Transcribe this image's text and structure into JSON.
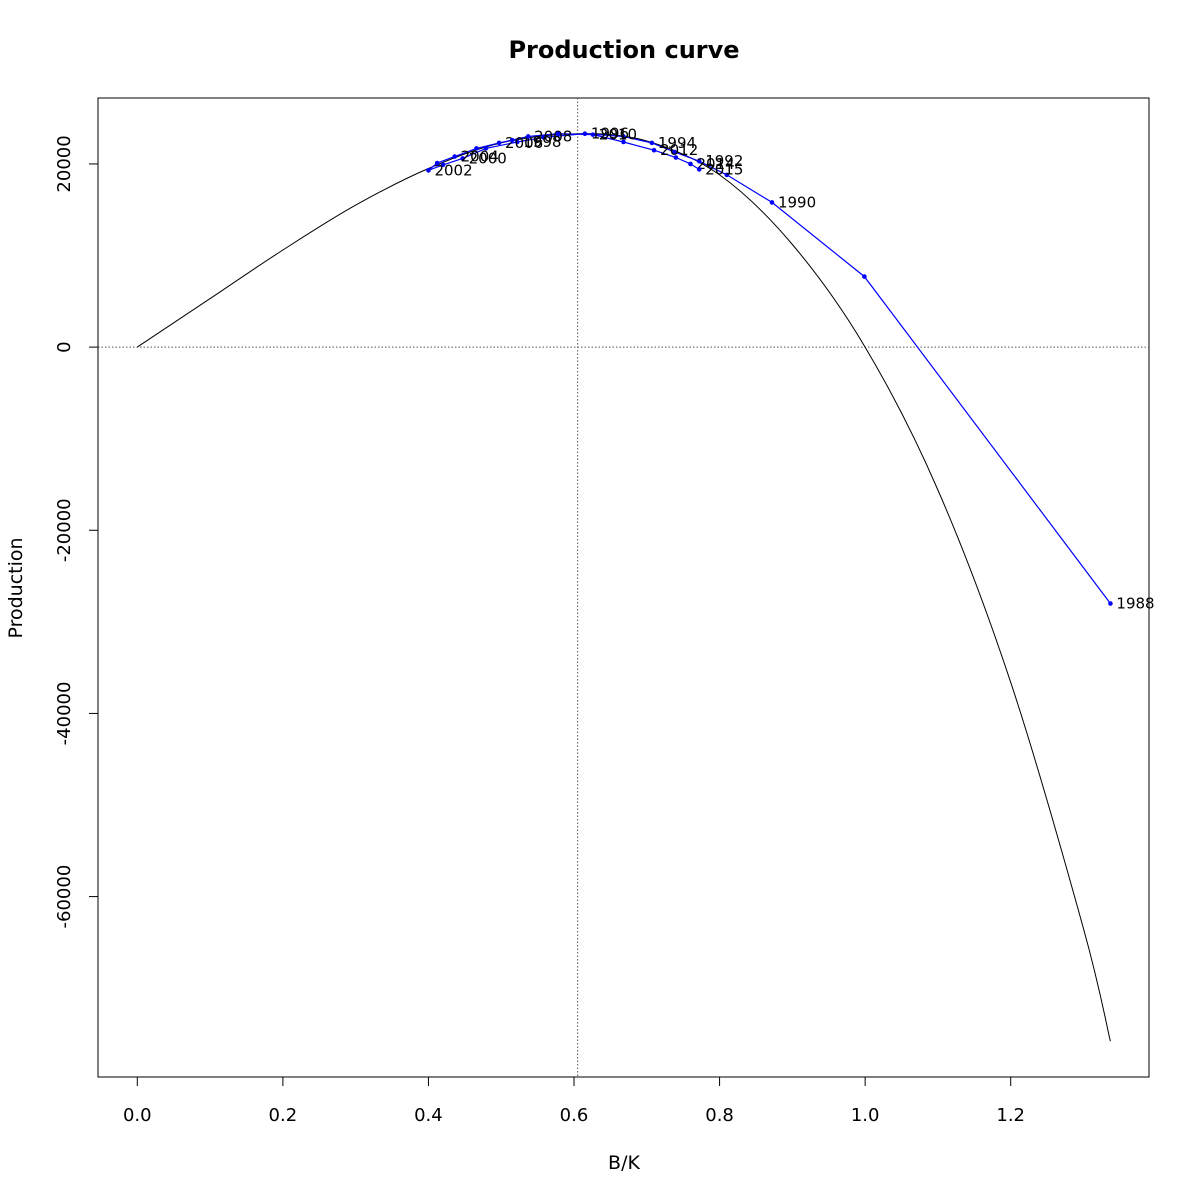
{
  "chart_data": {
    "type": "line",
    "title": "Production curve",
    "xlabel": "B/K",
    "ylabel": "Production",
    "xlim": [
      -0.054,
      1.39
    ],
    "ylim": [
      -79700,
      27200
    ],
    "x_ticks": [
      0.0,
      0.2,
      0.4,
      0.6,
      0.8,
      1.0,
      1.2
    ],
    "x_tick_labels": [
      "0.0",
      "0.2",
      "0.4",
      "0.6",
      "0.8",
      "1.0",
      "1.2"
    ],
    "y_ticks": [
      -60000,
      -40000,
      -20000,
      0,
      20000
    ],
    "y_tick_labels": [
      "-60000",
      "-40000",
      "-20000",
      "0",
      "20000"
    ],
    "reference_lines": {
      "vertical_x": 0.605,
      "horizontal_y": 0,
      "style": "dotted"
    },
    "model_curve": {
      "color": "#000000",
      "form": "r*B*(1-(B/K)^z)/z",
      "x_range": [
        0,
        1.337
      ],
      "points": [
        [
          0.0,
          0
        ],
        [
          0.1,
          5300
        ],
        [
          0.2,
          10600
        ],
        [
          0.3,
          15500
        ],
        [
          0.4,
          19500
        ],
        [
          0.5,
          22300
        ],
        [
          0.605,
          23300
        ],
        [
          0.7,
          22500
        ],
        [
          0.8,
          18800
        ],
        [
          0.9,
          11200
        ],
        [
          1.0,
          0
        ],
        [
          1.1,
          -15600
        ],
        [
          1.2,
          -36600
        ],
        [
          1.3,
          -63500
        ],
        [
          1.337,
          -75800
        ]
      ]
    },
    "series": [
      {
        "color": "#0000ff",
        "points": [
          {
            "x": 1.337,
            "y": -28000,
            "label": "1988"
          },
          {
            "x": 0.999,
            "y": 7700,
            "label": ""
          },
          {
            "x": 0.872,
            "y": 15800,
            "label": "1990"
          },
          {
            "x": 0.81,
            "y": 18800,
            "label": ""
          },
          {
            "x": 0.772,
            "y": 20300,
            "label": "1992"
          },
          {
            "x": 0.738,
            "y": 21300,
            "label": ""
          },
          {
            "x": 0.707,
            "y": 22300,
            "label": "1994"
          },
          {
            "x": 0.668,
            "y": 23000,
            "label": ""
          },
          {
            "x": 0.615,
            "y": 23300,
            "label": "1996"
          },
          {
            "x": 0.558,
            "y": 22900,
            "label": ""
          },
          {
            "x": 0.522,
            "y": 22400,
            "label": "1998"
          },
          {
            "x": 0.479,
            "y": 21700,
            "label": ""
          },
          {
            "x": 0.447,
            "y": 20600,
            "label": "2000"
          },
          {
            "x": 0.42,
            "y": 19900,
            "label": ""
          },
          {
            "x": 0.4,
            "y": 19300,
            "label": "2002"
          },
          {
            "x": 0.412,
            "y": 20100,
            "label": ""
          },
          {
            "x": 0.436,
            "y": 20800,
            "label": "2004"
          },
          {
            "x": 0.466,
            "y": 21700,
            "label": ""
          },
          {
            "x": 0.497,
            "y": 22300,
            "label": "2006"
          },
          {
            "x": 0.515,
            "y": 22600,
            "label": ""
          },
          {
            "x": 0.537,
            "y": 23000,
            "label": "2008"
          },
          {
            "x": 0.578,
            "y": 23300,
            "label": ""
          },
          {
            "x": 0.626,
            "y": 23200,
            "label": "2010"
          },
          {
            "x": 0.668,
            "y": 22400,
            "label": ""
          },
          {
            "x": 0.71,
            "y": 21500,
            "label": "2012"
          },
          {
            "x": 0.74,
            "y": 20700,
            "label": ""
          },
          {
            "x": 0.76,
            "y": 20000,
            "label": "2014"
          },
          {
            "x": 0.772,
            "y": 19400,
            "label": "2015"
          }
        ]
      }
    ]
  }
}
